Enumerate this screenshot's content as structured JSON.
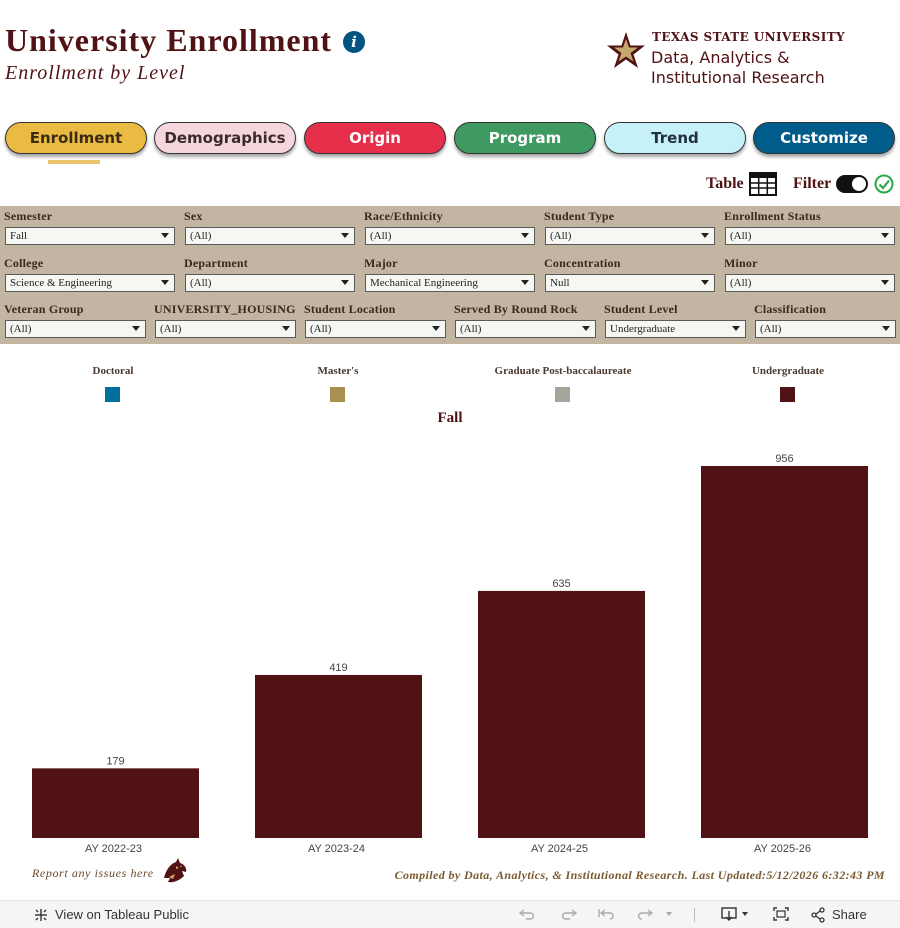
{
  "header": {
    "title": "University Enrollment",
    "subtitle": "Enrollment by Level",
    "info_icon": "info-icon",
    "logo": {
      "university": "TEXAS STATE UNIVERSITY",
      "dept_line1": "Data, Analytics &",
      "dept_line2": "Institutional Research"
    }
  },
  "nav": {
    "tabs": [
      {
        "label": "Enrollment",
        "bg": "#e9bb43",
        "fg": "#3a2a14"
      },
      {
        "label": "Demographics",
        "bg": "#f6d6dd",
        "fg": "#3a2a2a"
      },
      {
        "label": "Origin",
        "bg": "#e6304b",
        "fg": "#ffffff"
      },
      {
        "label": "Program",
        "bg": "#3e9a61",
        "fg": "#ffffff"
      },
      {
        "label": "Trend",
        "bg": "#c7f1f9",
        "fg": "#203040"
      },
      {
        "label": "Customize",
        "bg": "#005c8b",
        "fg": "#ffffff"
      }
    ],
    "active": "Enrollment"
  },
  "controls": {
    "table_label": "Table",
    "filter_label": "Filter"
  },
  "filters": {
    "row1": [
      {
        "label": "Semester",
        "value": "Fall"
      },
      {
        "label": "Sex",
        "value": "(All)"
      },
      {
        "label": "Race/Ethnicity",
        "value": "(All)"
      },
      {
        "label": "Student Type",
        "value": "(All)"
      },
      {
        "label": "Enrollment Status",
        "value": "(All)"
      }
    ],
    "row2": [
      {
        "label": "College",
        "value": "Science & Engineering"
      },
      {
        "label": "Department",
        "value": "(All)"
      },
      {
        "label": "Major",
        "value": "Mechanical Engineering"
      },
      {
        "label": "Concentration",
        "value": "Null"
      },
      {
        "label": "Minor",
        "value": "(All)"
      }
    ],
    "row3": [
      {
        "label": "Veteran Group",
        "value": "(All)"
      },
      {
        "label": "UNIVERSITY_HOUSING",
        "value": "(All)"
      },
      {
        "label": "Student Location",
        "value": "(All)"
      },
      {
        "label": "Served By Round Rock",
        "value": "(All)"
      },
      {
        "label": "Student Level",
        "value": "Undergraduate"
      },
      {
        "label": "Classification",
        "value": "(All)"
      }
    ]
  },
  "legend": [
    {
      "label": "Doctoral",
      "color": "#00709e"
    },
    {
      "label": "Master's",
      "color": "#a89050"
    },
    {
      "label": "Graduate Post-baccalaureate",
      "color": "#a5a59c"
    },
    {
      "label": "Undergraduate",
      "color": "#501214"
    }
  ],
  "chart_data": {
    "type": "bar",
    "title": "Fall",
    "categories": [
      "AY 2022-23",
      "AY 2023-24",
      "AY 2024-25",
      "AY 2025-26"
    ],
    "series": [
      {
        "name": "Undergraduate",
        "values": [
          179,
          419,
          635,
          956
        ],
        "color": "#501214"
      }
    ],
    "ylim": [
      0,
      956
    ],
    "grid": false
  },
  "footer": {
    "report_text": "Report any issues here",
    "compiled_text": "Compiled by Data, Analytics, & Institutional Research. Last Updated:5/12/2026 6:32:43 PM"
  },
  "tableau_toolbar": {
    "view_label": "View on Tableau Public",
    "share_label": "Share"
  }
}
